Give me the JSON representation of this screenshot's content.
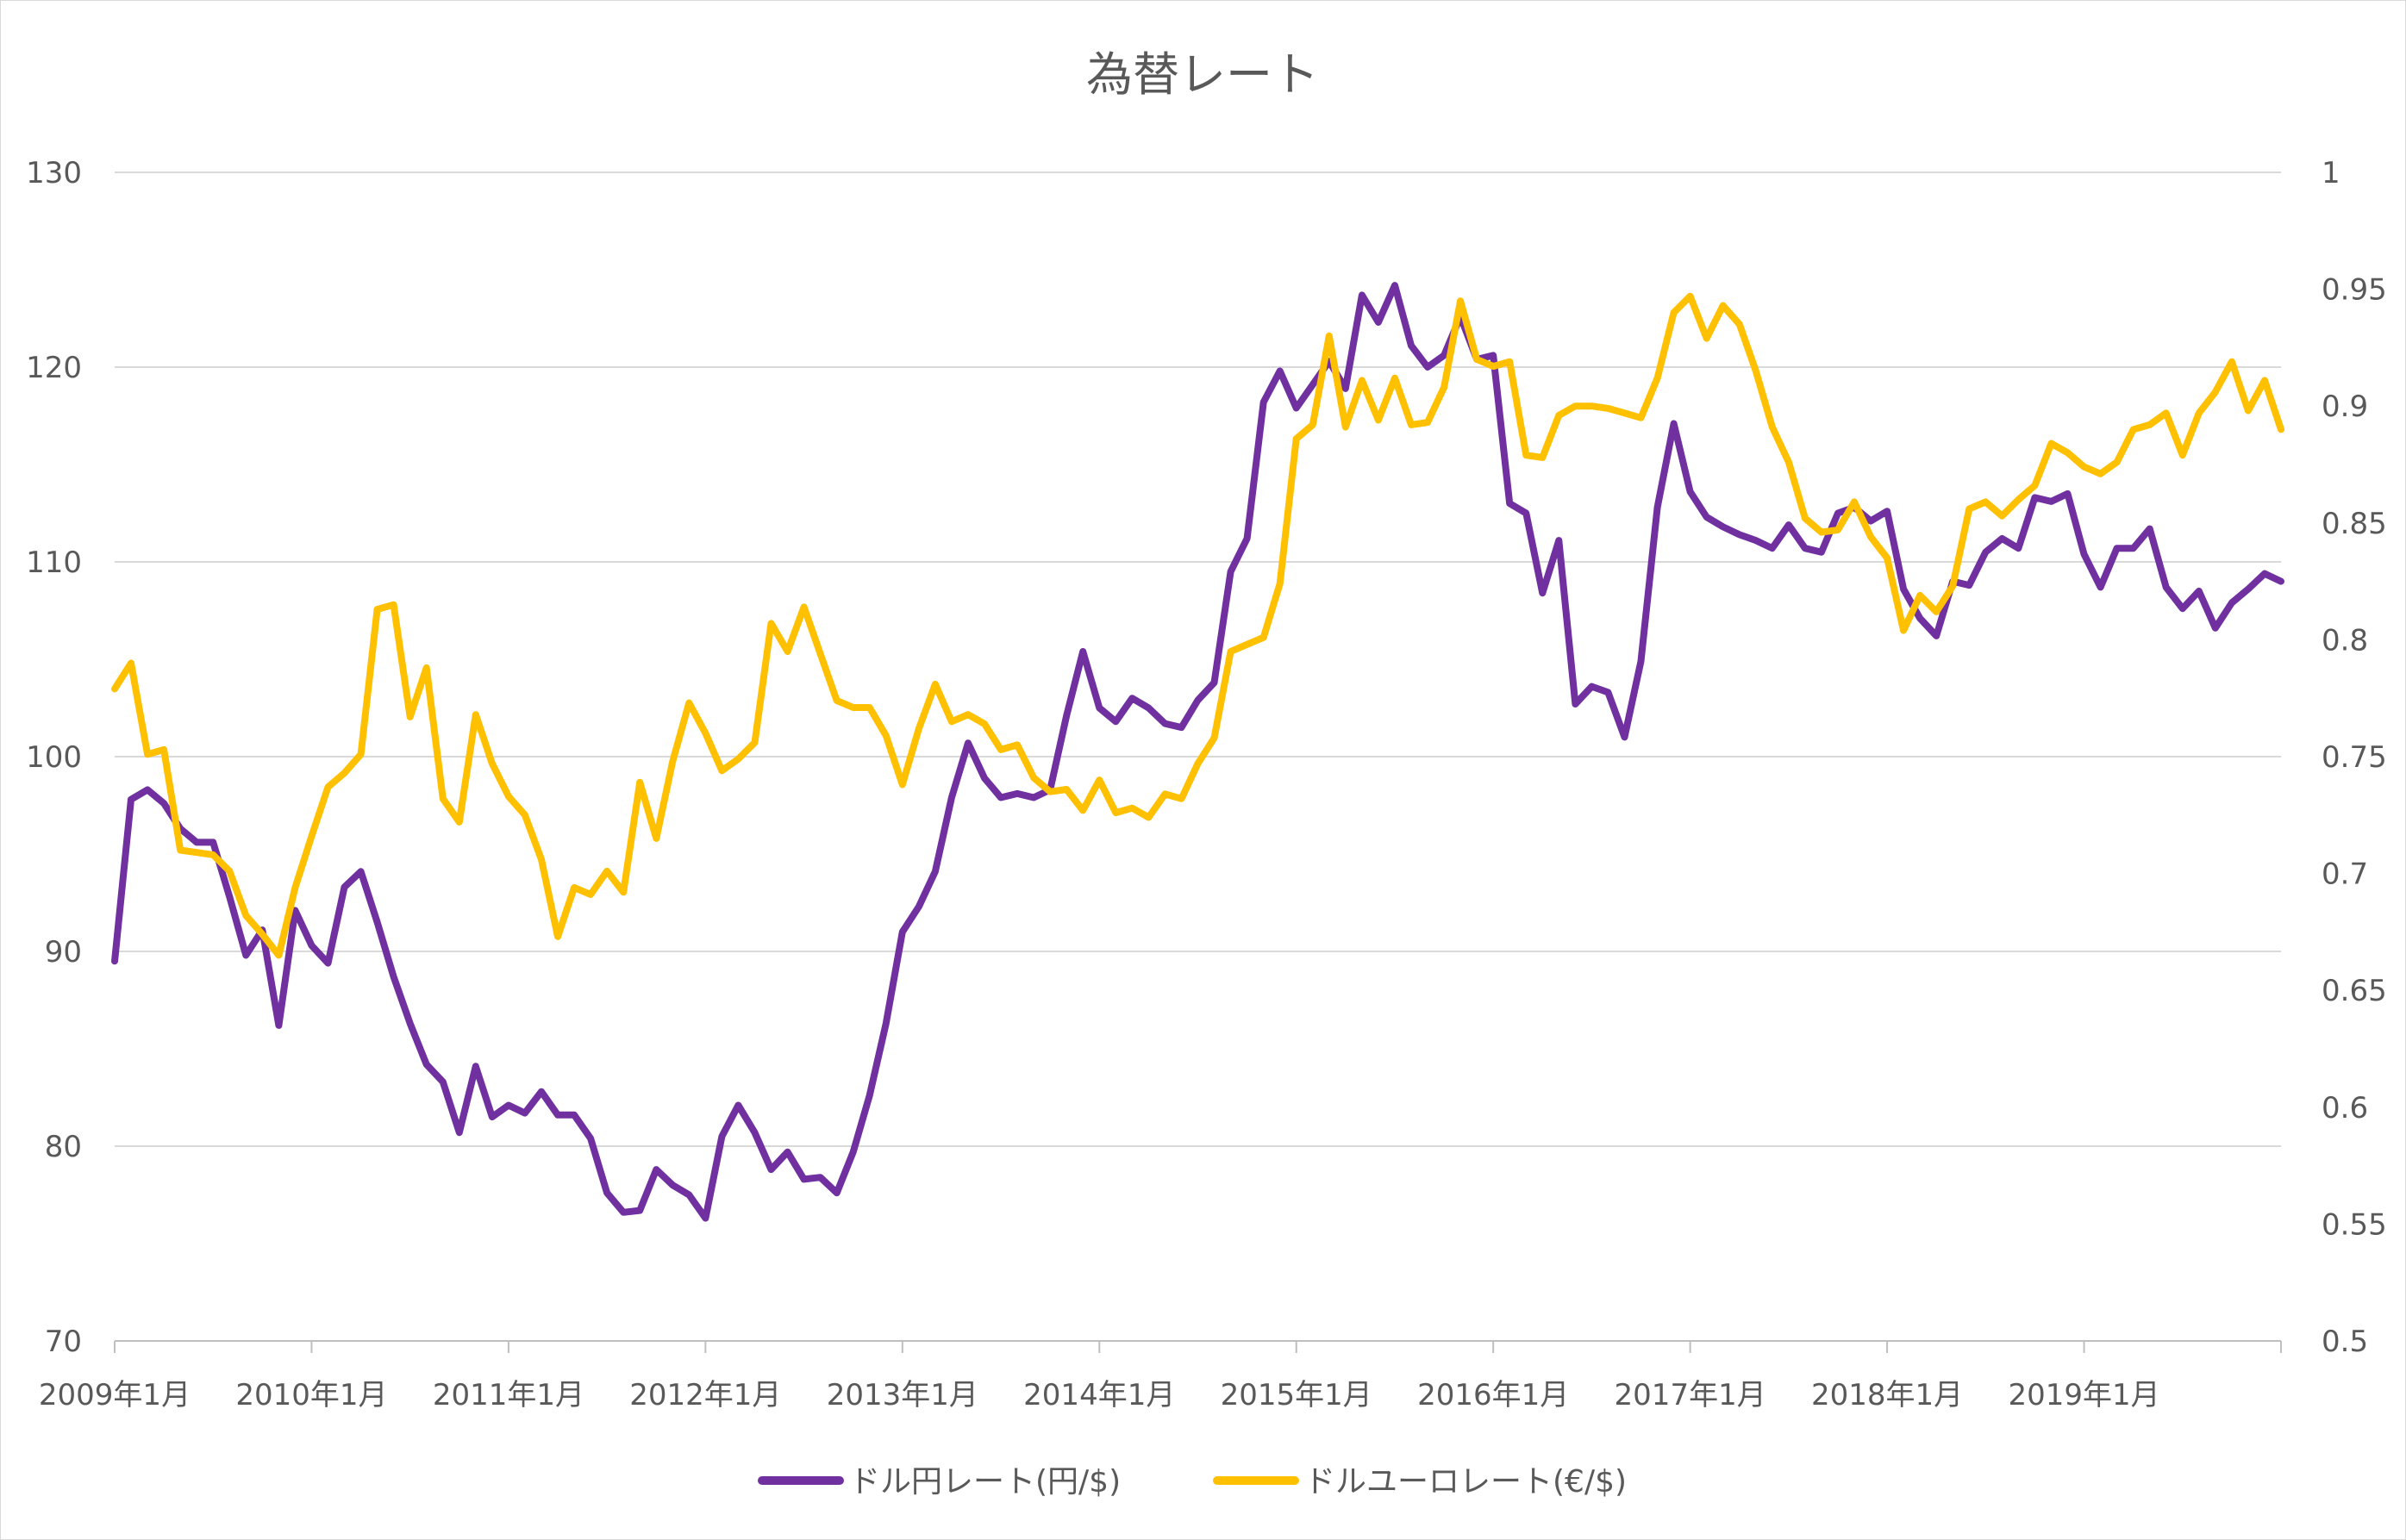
{
  "chart_data": {
    "type": "line",
    "title": "為替レート",
    "x_tick_labels": [
      "2009年1月",
      "2010年1月",
      "2011年1月",
      "2012年1月",
      "2013年1月",
      "2014年1月",
      "2015年1月",
      "2016年1月",
      "2017年1月",
      "2018年1月",
      "2019年1月"
    ],
    "x_start": "2009-01",
    "x_end": "2019-12",
    "y_left": {
      "ylim": [
        70,
        130
      ],
      "ticks": [
        "70",
        "80",
        "90",
        "100",
        "110",
        "120",
        "130"
      ]
    },
    "y_right": {
      "ylim": [
        0.5,
        1.0
      ],
      "ticks": [
        "0.5",
        "0.55",
        "0.6",
        "0.65",
        "0.7",
        "0.75",
        "0.8",
        "0.85",
        "0.9",
        "0.95",
        "1"
      ]
    },
    "grid": true,
    "legend": "bottom",
    "series": [
      {
        "name": "ドル円レート(円/$)",
        "axis": "left",
        "color": "#7030A0",
        "values": [
          89.5,
          97.8,
          98.3,
          97.6,
          96.3,
          95.6,
          95.6,
          92.8,
          89.8,
          91.1,
          86.2,
          92.1,
          90.3,
          89.4,
          93.3,
          94.1,
          91.5,
          88.7,
          86.3,
          84.2,
          83.3,
          80.7,
          84.1,
          81.5,
          82.1,
          81.7,
          82.8,
          81.6,
          81.6,
          80.4,
          77.6,
          76.6,
          76.7,
          78.8,
          78.0,
          77.5,
          76.3,
          80.5,
          82.1,
          80.7,
          78.8,
          79.7,
          78.3,
          78.4,
          77.6,
          79.7,
          82.6,
          86.3,
          91.0,
          92.3,
          94.1,
          97.9,
          100.7,
          98.9,
          97.9,
          98.1,
          97.9,
          98.3,
          102.1,
          105.4,
          102.5,
          101.8,
          103.0,
          102.5,
          101.7,
          101.5,
          102.9,
          103.8,
          109.5,
          111.2,
          118.2,
          119.8,
          117.9,
          119.1,
          120.3,
          118.9,
          123.7,
          122.3,
          124.2,
          121.1,
          120.0,
          120.6,
          122.6,
          120.4,
          120.6,
          113.0,
          112.5,
          108.4,
          111.1,
          102.7,
          103.6,
          103.3,
          101.0,
          104.9,
          112.8,
          117.1,
          113.6,
          112.3,
          111.8,
          111.4,
          111.1,
          110.7,
          111.9,
          110.7,
          110.5,
          112.5,
          112.8,
          112.1,
          112.6,
          108.6,
          107.1,
          106.2,
          109.0,
          108.8,
          110.5,
          111.2,
          110.7,
          113.3,
          113.1,
          113.5,
          110.4,
          108.7,
          110.7,
          110.7,
          111.7,
          108.7,
          107.6,
          108.5,
          106.6,
          107.9,
          108.6,
          109.4,
          109.0
        ]
      },
      {
        "name": "ドルユーロレート(€/$)",
        "axis": "right",
        "color": "#FFC000",
        "values": [
          0.779,
          0.79,
          0.751,
          0.753,
          0.71,
          0.709,
          0.708,
          0.701,
          0.682,
          0.674,
          0.665,
          0.694,
          0.716,
          0.737,
          0.743,
          0.751,
          0.813,
          0.815,
          0.767,
          0.788,
          0.732,
          0.722,
          0.768,
          0.747,
          0.733,
          0.725,
          0.706,
          0.673,
          0.694,
          0.691,
          0.701,
          0.692,
          0.739,
          0.715,
          0.748,
          0.773,
          0.76,
          0.744,
          0.749,
          0.756,
          0.807,
          0.795,
          0.814,
          0.794,
          0.774,
          0.771,
          0.771,
          0.759,
          0.738,
          0.762,
          0.781,
          0.765,
          0.768,
          0.764,
          0.753,
          0.755,
          0.741,
          0.735,
          0.736,
          0.727,
          0.74,
          0.726,
          0.728,
          0.724,
          0.734,
          0.732,
          0.747,
          0.758,
          0.795,
          0.798,
          0.801,
          0.824,
          0.886,
          0.892,
          0.93,
          0.891,
          0.911,
          0.894,
          0.912,
          0.892,
          0.893,
          0.908,
          0.945,
          0.92,
          0.917,
          0.919,
          0.879,
          0.878,
          0.896,
          0.9,
          0.9,
          0.899,
          0.897,
          0.895,
          0.912,
          0.94,
          0.947,
          0.929,
          0.943,
          0.935,
          0.915,
          0.891,
          0.876,
          0.852,
          0.846,
          0.847,
          0.859,
          0.844,
          0.835,
          0.804,
          0.819,
          0.812,
          0.823,
          0.856,
          0.859,
          0.853,
          0.86,
          0.866,
          0.884,
          0.88,
          0.874,
          0.871,
          0.876,
          0.89,
          0.892,
          0.897,
          0.879,
          0.897,
          0.906,
          0.919,
          0.898,
          0.911,
          0.89
        ]
      }
    ]
  }
}
